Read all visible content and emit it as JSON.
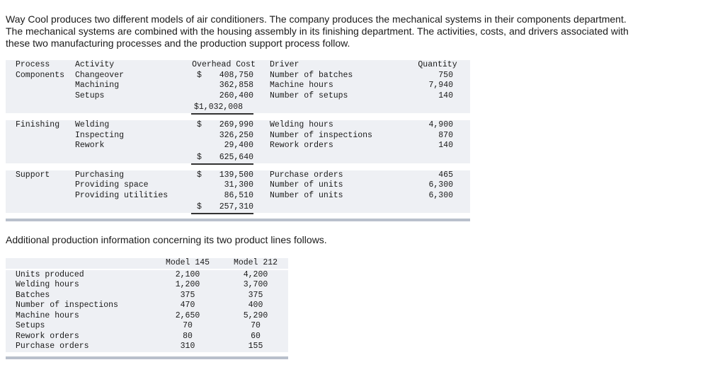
{
  "intro": "Way Cool produces two different models of air conditioners. The company produces the mechanical systems in their components department. The mechanical systems are combined with the housing assembly in its finishing department. The activities, costs, and drivers associated with these two manufacturing processes and the production support process follow.",
  "activity_table": {
    "headers": {
      "process": "Process",
      "activity": "Activity",
      "cost": "Overhead Cost",
      "driver": "Driver",
      "quantity": "Quantity"
    },
    "components": {
      "process": "Components",
      "rows": [
        {
          "activity": "Changeover",
          "cost": "408,750",
          "driver": "Number of batches",
          "quantity": "750"
        },
        {
          "activity": "Machining",
          "cost": "362,858",
          "driver": "Machine hours",
          "quantity": "7,940"
        },
        {
          "activity": "Setups",
          "cost": "260,400",
          "driver": "Number of setups",
          "quantity": "140"
        }
      ],
      "total": "$1,032,008"
    },
    "finishing": {
      "process": "Finishing",
      "rows": [
        {
          "activity": "Welding",
          "cost": "269,990",
          "driver": "Welding hours",
          "quantity": "4,900"
        },
        {
          "activity": "Inspecting",
          "cost": "326,250",
          "driver": "Number of inspections",
          "quantity": "870"
        },
        {
          "activity": "Rework",
          "cost": "29,400",
          "driver": "Rework orders",
          "quantity": "140"
        }
      ],
      "total": "625,640"
    },
    "support": {
      "process": "Support",
      "rows": [
        {
          "activity": "Purchasing",
          "cost": "139,500",
          "driver": "Purchase orders",
          "quantity": "465"
        },
        {
          "activity": "Providing space",
          "cost": "31,300",
          "driver": "Number of units",
          "quantity": "6,300"
        },
        {
          "activity": "Providing utilities",
          "cost": "86,510",
          "driver": "Number of units",
          "quantity": "6,300"
        }
      ],
      "total": "257,310"
    },
    "dollar_sign": "$"
  },
  "section2_text": "Additional production information concerning its two product lines follows.",
  "product_table": {
    "headers": {
      "model145": "Model 145",
      "model212": "Model 212"
    },
    "rows": [
      {
        "label": "Units produced",
        "m145": "2,100",
        "m212": "4,200"
      },
      {
        "label": "Welding hours",
        "m145": "1,200",
        "m212": "3,700"
      },
      {
        "label": "Batches",
        "m145": "375",
        "m212": "375"
      },
      {
        "label": "Number of inspections",
        "m145": "470",
        "m212": "400"
      },
      {
        "label": "Machine hours",
        "m145": "2,650",
        "m212": "5,290"
      },
      {
        "label": "Setups",
        "m145": "70",
        "m212": "70"
      },
      {
        "label": "Rework orders",
        "m145": "80",
        "m212": "60"
      },
      {
        "label": "Purchase orders",
        "m145": "310",
        "m212": "155"
      }
    ]
  }
}
